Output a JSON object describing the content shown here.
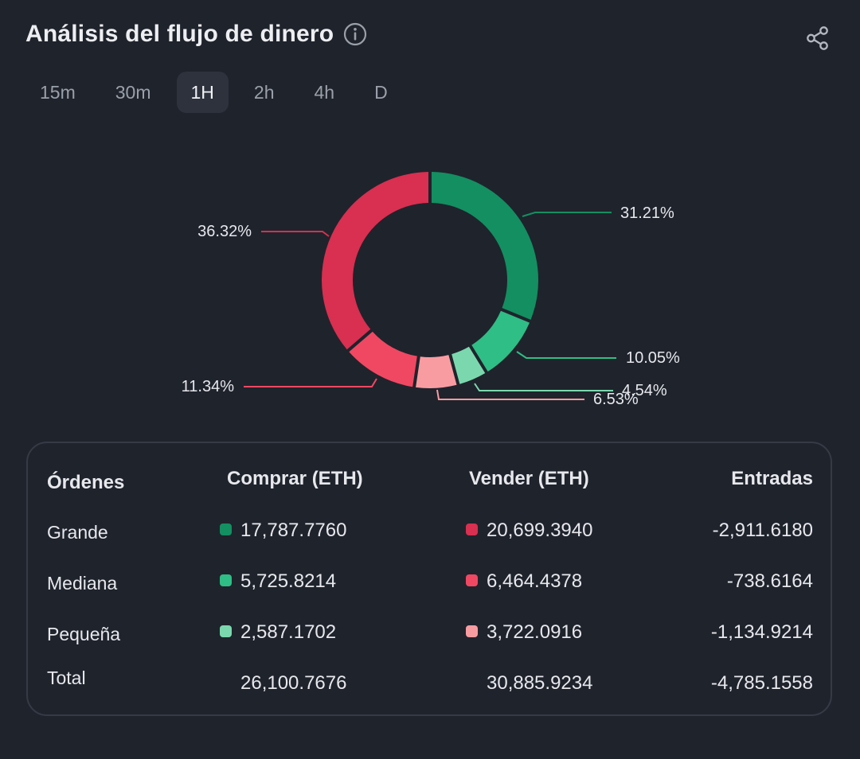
{
  "header": {
    "title": "Análisis del flujo de dinero"
  },
  "tabs": [
    {
      "label": "15m",
      "active": false
    },
    {
      "label": "30m",
      "active": false
    },
    {
      "label": "1H",
      "active": true
    },
    {
      "label": "2h",
      "active": false
    },
    {
      "label": "4h",
      "active": false
    },
    {
      "label": "D",
      "active": false
    }
  ],
  "chart_data": {
    "type": "pie",
    "donut": true,
    "labels": [
      "Compra grande",
      "Compra mediana",
      "Compra pequeña",
      "Venta pequeña",
      "Venta mediana",
      "Venta grande"
    ],
    "values": [
      31.21,
      10.05,
      4.54,
      6.53,
      11.34,
      36.32
    ],
    "value_labels": [
      "31.21%",
      "10.05%",
      "4.54%",
      "6.53%",
      "11.34%",
      "36.32%"
    ],
    "colors": [
      "#138f61",
      "#2fbe85",
      "#7bd8ae",
      "#f99ca1",
      "#f04862",
      "#d92f50"
    ],
    "title": ""
  },
  "table": {
    "headers": {
      "orders": "Órdenes",
      "buy": "Comprar (ETH)",
      "sell": "Vender (ETH)",
      "inflows": "Entradas"
    },
    "rows": [
      {
        "label": "Grande",
        "buy": "17,787.7760",
        "sell": "20,699.3940",
        "net": "-2,911.6180",
        "buy_color": "#138f61",
        "sell_color": "#d92f50"
      },
      {
        "label": "Mediana",
        "buy": "5,725.8214",
        "sell": "6,464.4378",
        "net": "-738.6164",
        "buy_color": "#2fbe85",
        "sell_color": "#f04862"
      },
      {
        "label": "Pequeña",
        "buy": "2,587.1702",
        "sell": "3,722.0916",
        "net": "-1,134.9214",
        "buy_color": "#7bd8ae",
        "sell_color": "#f99ca1"
      }
    ],
    "total": {
      "label": "Total",
      "buy": "26,100.7676",
      "sell": "30,885.9234",
      "net": "-4,785.1558"
    }
  },
  "icons": {
    "info": "info-icon",
    "share": "share-icon"
  }
}
